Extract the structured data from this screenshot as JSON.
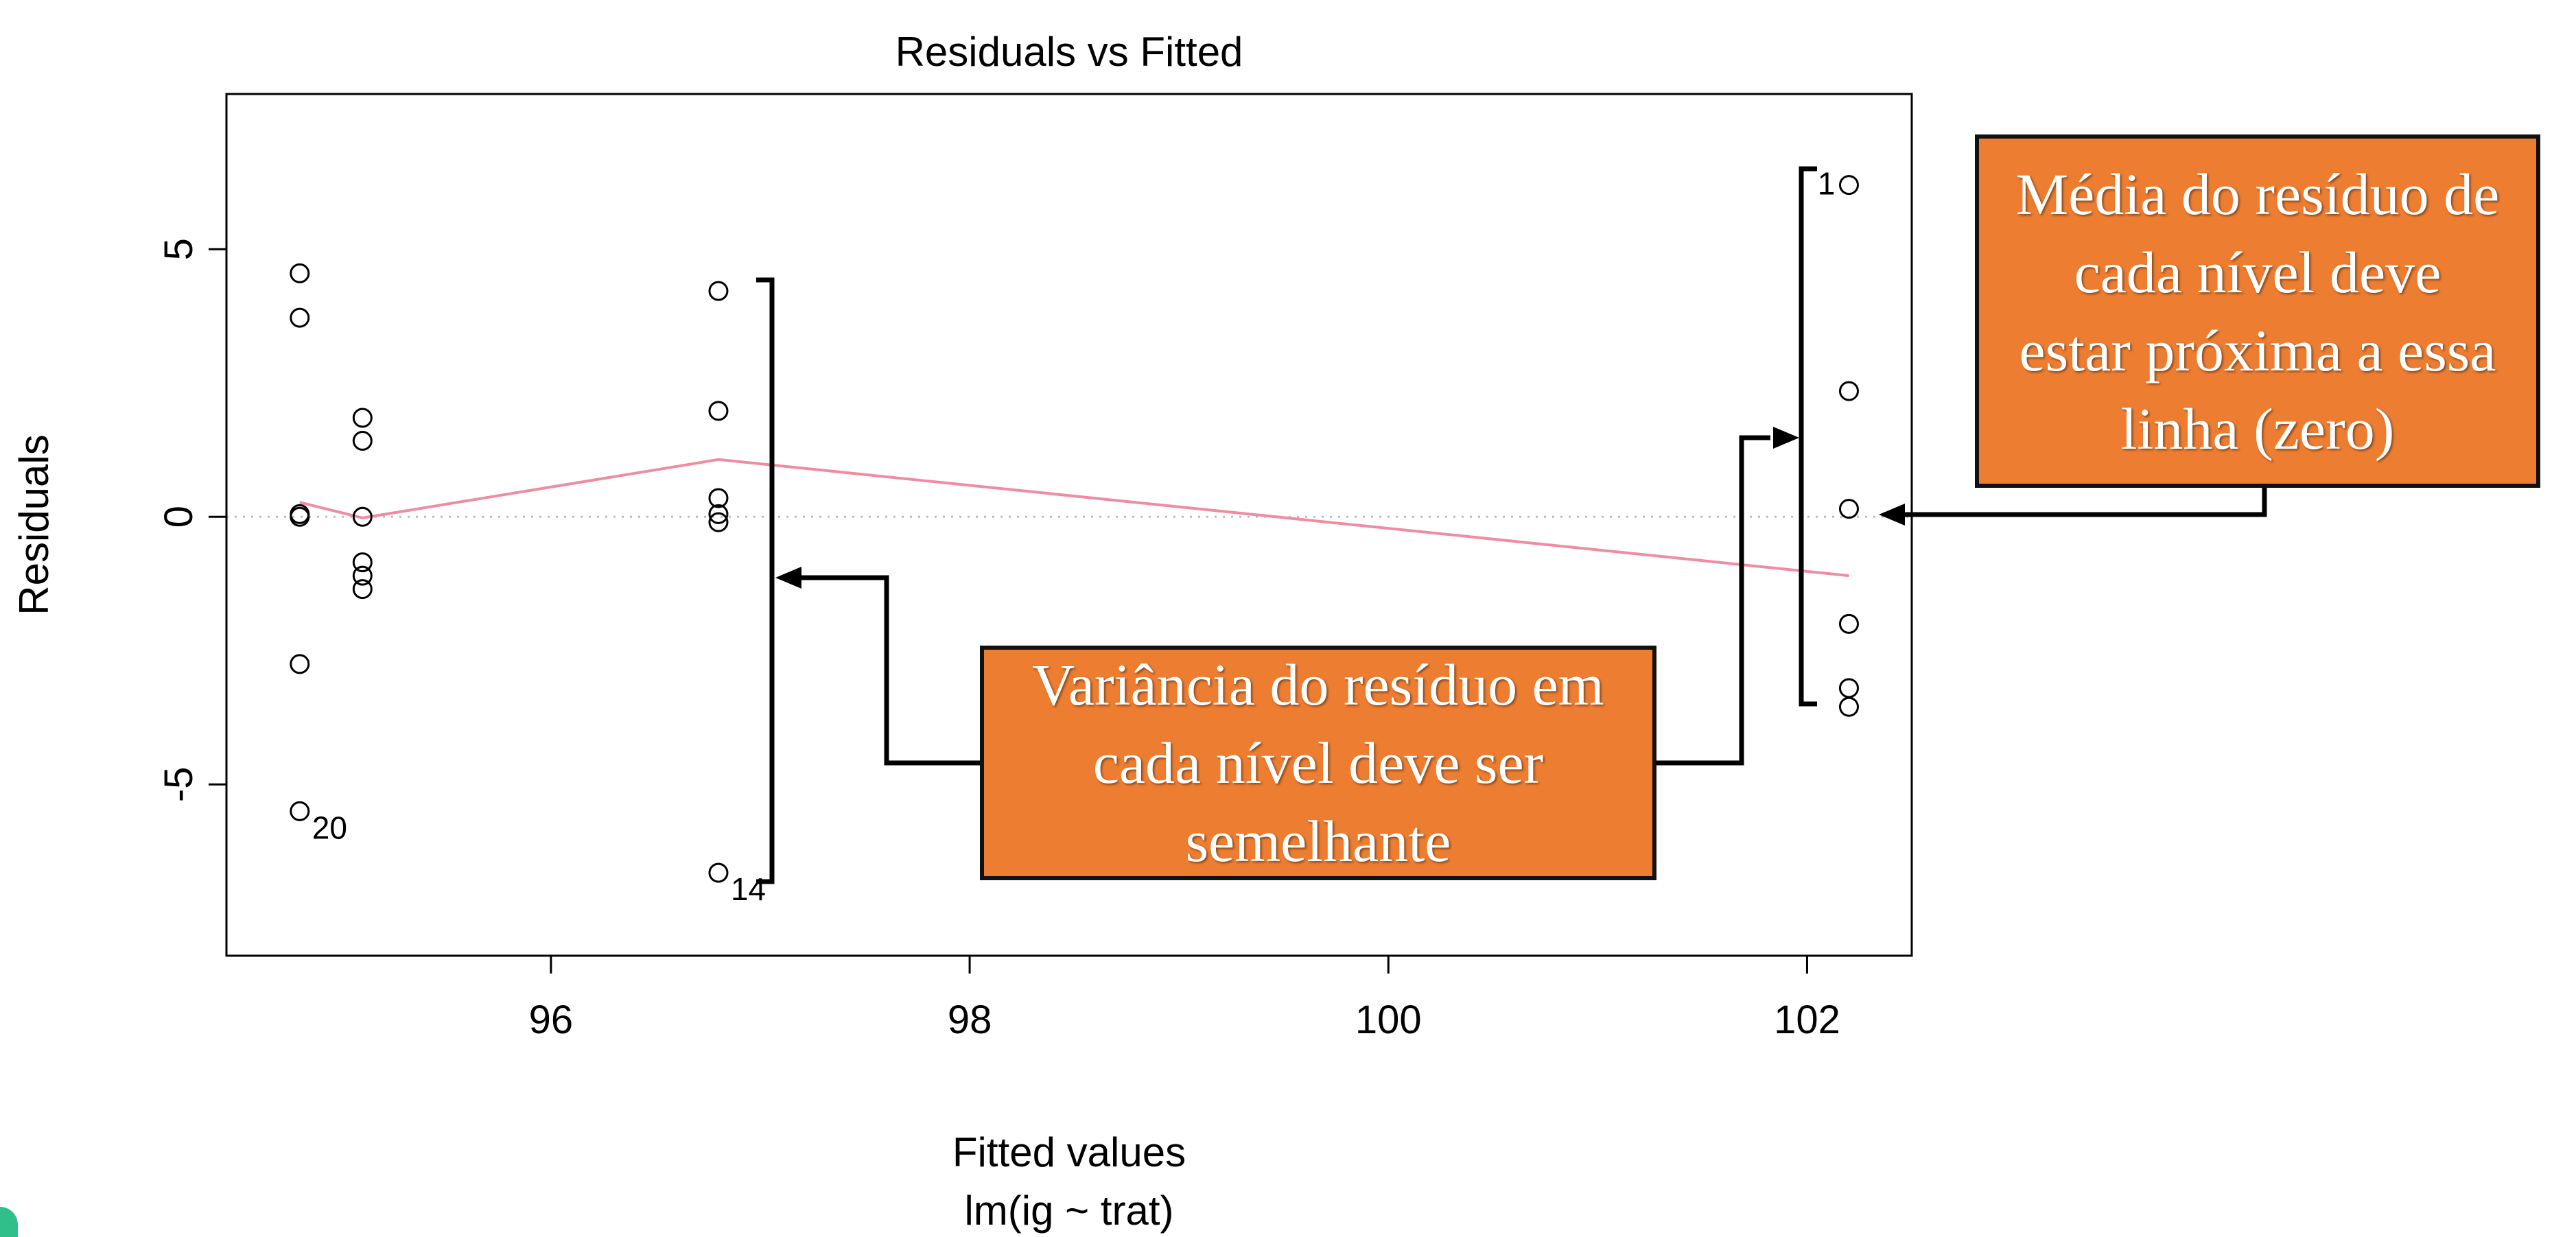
{
  "chart_data": {
    "type": "scatter",
    "title": "Residuals vs Fitted",
    "xlabel": "Fitted values",
    "xlabel2": "lm(ig ~ trat)",
    "ylabel": "Residuals",
    "xlim": [
      94.45,
      102.5
    ],
    "ylim": [
      -8.2,
      7.9
    ],
    "xticks": [
      96,
      98,
      100,
      102
    ],
    "yticks": [
      -5,
      0,
      5
    ],
    "grid": false,
    "points": [
      {
        "x": 94.8,
        "y": 4.55
      },
      {
        "x": 94.8,
        "y": 3.72
      },
      {
        "x": 94.8,
        "y": 0.05
      },
      {
        "x": 94.8,
        "y": 0.0
      },
      {
        "x": 94.8,
        "y": -2.75
      },
      {
        "x": 94.8,
        "y": -5.5,
        "label": "20"
      },
      {
        "x": 95.1,
        "y": 1.85
      },
      {
        "x": 95.1,
        "y": 1.42
      },
      {
        "x": 95.1,
        "y": 0.0
      },
      {
        "x": 95.1,
        "y": -0.85
      },
      {
        "x": 95.1,
        "y": -1.1
      },
      {
        "x": 95.1,
        "y": -1.35
      },
      {
        "x": 96.8,
        "y": 4.22
      },
      {
        "x": 96.8,
        "y": 1.98
      },
      {
        "x": 96.8,
        "y": 0.35
      },
      {
        "x": 96.8,
        "y": 0.05
      },
      {
        "x": 96.8,
        "y": -0.1
      },
      {
        "x": 96.8,
        "y": -6.65,
        "label": "14"
      },
      {
        "x": 102.2,
        "y": 6.2,
        "label": "1"
      },
      {
        "x": 102.2,
        "y": 2.35
      },
      {
        "x": 102.2,
        "y": 0.15
      },
      {
        "x": 102.2,
        "y": -2.0
      },
      {
        "x": 102.2,
        "y": -3.2
      },
      {
        "x": 102.2,
        "y": -3.55
      }
    ],
    "smoother": {
      "x": [
        94.8,
        95.1,
        96.8,
        102.2
      ],
      "y": [
        0.27,
        -0.02,
        1.07,
        -1.1
      ]
    },
    "zero_line": true,
    "colors": {
      "points": "#000000",
      "smoother": "#f08ca0",
      "zero_line": "#bdbdbd"
    }
  },
  "annotations": {
    "mean_callout": [
      "Média do resíduo de",
      "cada nível deve",
      "estar próxima a essa",
      "linha (zero)"
    ],
    "variance_callout": [
      "Variância do resíduo em",
      "cada nível deve ser",
      "semelhante"
    ],
    "colors": {
      "box": "#ed7d31",
      "text": "#ffffff",
      "border": "#111111"
    }
  }
}
